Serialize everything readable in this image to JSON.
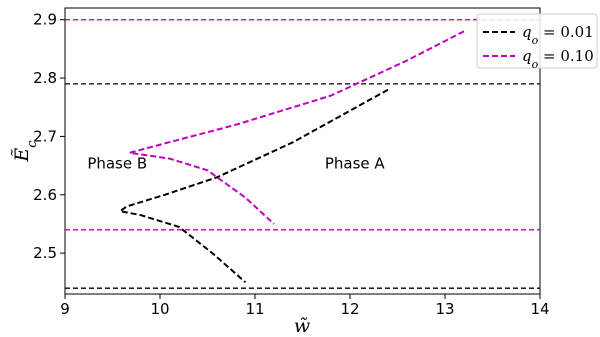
{
  "chart_data": {
    "type": "line",
    "xlabel": "w̃",
    "ylabel": "Ẽ_c",
    "xlim": [
      9,
      14
    ],
    "ylim": [
      2.43,
      2.92
    ],
    "x_ticks": [
      "9",
      "10",
      "11",
      "12",
      "13",
      "14"
    ],
    "y_ticks": [
      "2.5",
      "2.6",
      "2.7",
      "2.8",
      "2.9"
    ],
    "grid": false,
    "legend_position": "top-right",
    "series": [
      {
        "name": "q_o = 0.01",
        "color": "#000000",
        "dash": "dashed",
        "points": [
          [
            12.4,
            2.78
          ],
          [
            11.4,
            2.69
          ],
          [
            10.6,
            2.63
          ],
          [
            10.05,
            2.6
          ],
          [
            9.65,
            2.58
          ],
          [
            9.58,
            2.572
          ],
          [
            9.8,
            2.565
          ],
          [
            10.2,
            2.545
          ],
          [
            10.55,
            2.5
          ],
          [
            10.9,
            2.45
          ]
        ]
      },
      {
        "name": "q_o = 0.10",
        "color": "#c000c0",
        "dash": "dashed",
        "points": [
          [
            13.2,
            2.88
          ],
          [
            12.6,
            2.83
          ],
          [
            11.8,
            2.77
          ],
          [
            10.8,
            2.72
          ],
          [
            10.05,
            2.688
          ],
          [
            9.68,
            2.672
          ],
          [
            10.1,
            2.662
          ],
          [
            10.5,
            2.642
          ],
          [
            10.9,
            2.595
          ],
          [
            11.2,
            2.55
          ]
        ]
      }
    ],
    "reference_lines": [
      {
        "y": 2.9,
        "color": "#c000c0",
        "dash": "dashed"
      },
      {
        "y": 2.79,
        "color": "#000000",
        "dash": "dashed"
      },
      {
        "y": 2.54,
        "color": "#c000c0",
        "dash": "dashed"
      },
      {
        "y": 2.44,
        "color": "#000000",
        "dash": "dashed"
      }
    ],
    "annotations": [
      {
        "text": "Phase B",
        "x": 9.55,
        "y": 2.645
      },
      {
        "text": "Phase A",
        "x": 12.05,
        "y": 2.645
      }
    ]
  }
}
